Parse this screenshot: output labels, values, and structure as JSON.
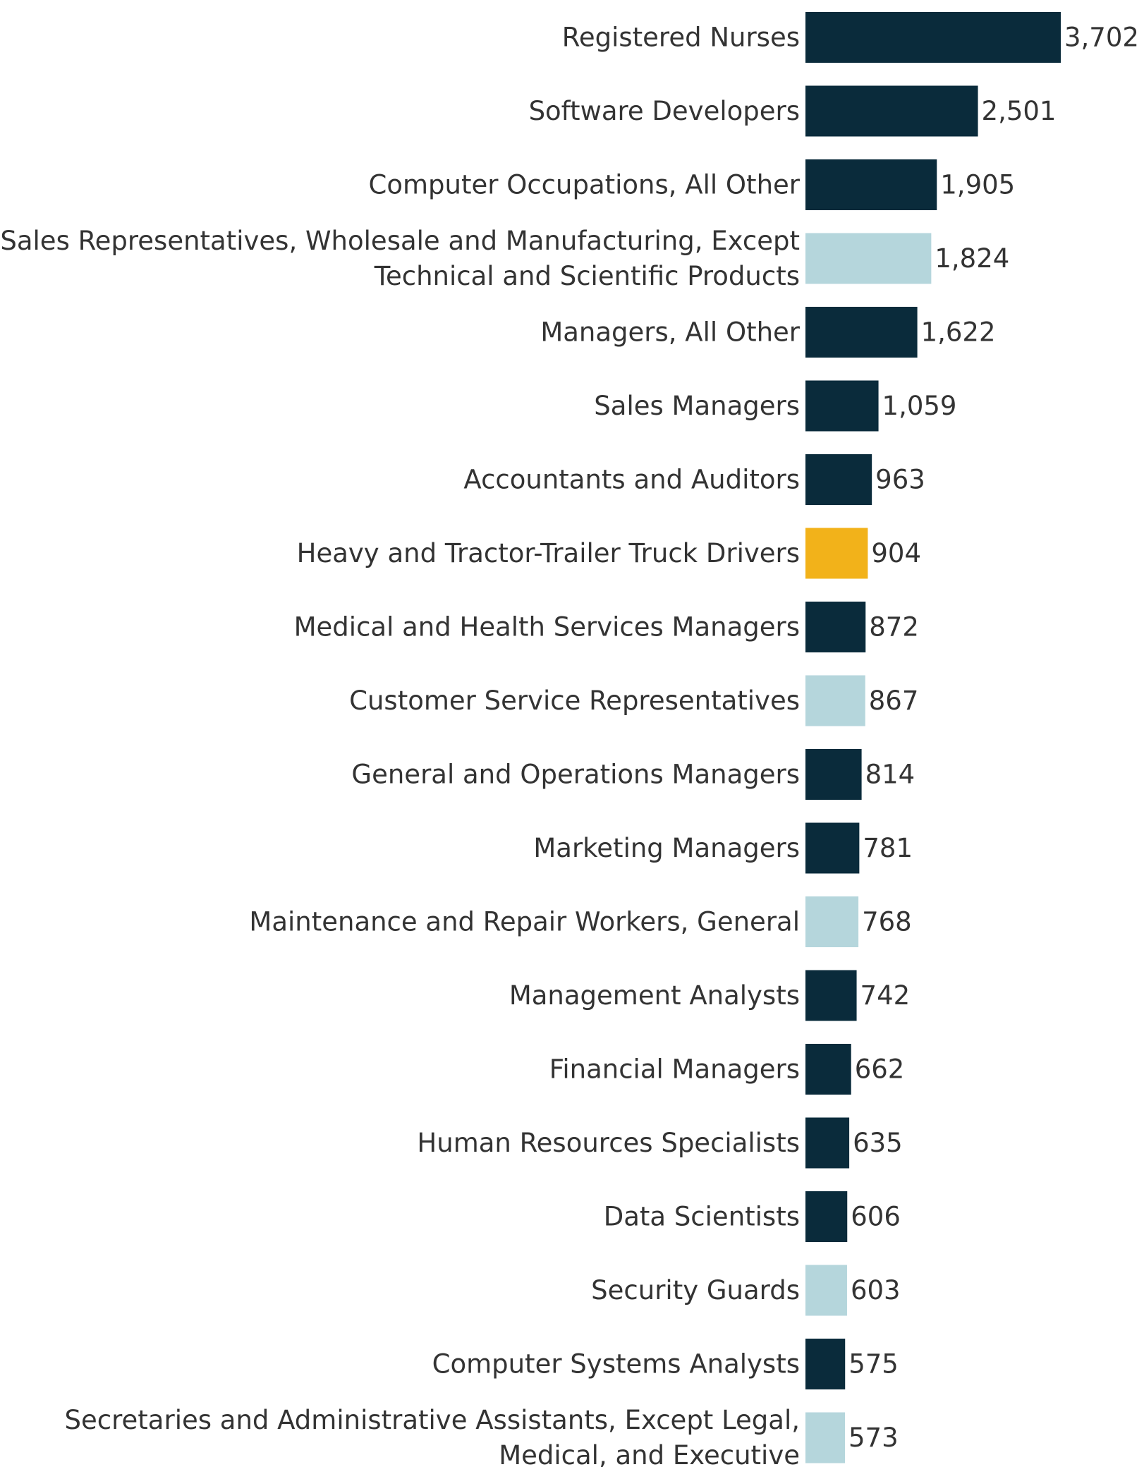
{
  "chart_data": {
    "type": "bar",
    "orientation": "horizontal",
    "categories": [
      [
        "Registered Nurses"
      ],
      [
        "Software Developers"
      ],
      [
        "Computer Occupations, All Other"
      ],
      [
        "Sales Representatives, Wholesale and Manufacturing, Except",
        "Technical and Scientific Products"
      ],
      [
        "Managers, All Other"
      ],
      [
        "Sales Managers"
      ],
      [
        "Accountants and Auditors"
      ],
      [
        "Heavy and Tractor-Trailer Truck Drivers"
      ],
      [
        "Medical and Health Services Managers"
      ],
      [
        "Customer Service Representatives"
      ],
      [
        "General and Operations Managers"
      ],
      [
        "Marketing Managers"
      ],
      [
        "Maintenance and Repair Workers, General"
      ],
      [
        "Management Analysts"
      ],
      [
        "Financial Managers"
      ],
      [
        "Human Resources Specialists"
      ],
      [
        "Data Scientists"
      ],
      [
        "Security Guards"
      ],
      [
        "Computer Systems Analysts"
      ],
      [
        "Secretaries and Administrative Assistants, Except Legal,",
        "Medical, and Executive"
      ]
    ],
    "values": [
      3702,
      2501,
      1905,
      1824,
      1622,
      1059,
      963,
      904,
      872,
      867,
      814,
      781,
      768,
      742,
      662,
      635,
      606,
      603,
      575,
      573
    ],
    "value_labels": [
      "3,702",
      "2,501",
      "1,905",
      "1,824",
      "1,622",
      "1,059",
      "963",
      "904",
      "872",
      "867",
      "814",
      "781",
      "768",
      "742",
      "662",
      "635",
      "606",
      "603",
      "575",
      "573"
    ],
    "color_groups": [
      "dark",
      "dark",
      "dark",
      "light",
      "dark",
      "dark",
      "dark",
      "highlight",
      "dark",
      "light",
      "dark",
      "dark",
      "light",
      "dark",
      "dark",
      "dark",
      "dark",
      "light",
      "dark",
      "light"
    ],
    "colors": {
      "dark": "#0a2b3b",
      "light": "#b5d6dc",
      "highlight": "#f2b21a"
    },
    "xlim": [
      0,
      3702
    ],
    "grid": false,
    "legend": "none"
  }
}
